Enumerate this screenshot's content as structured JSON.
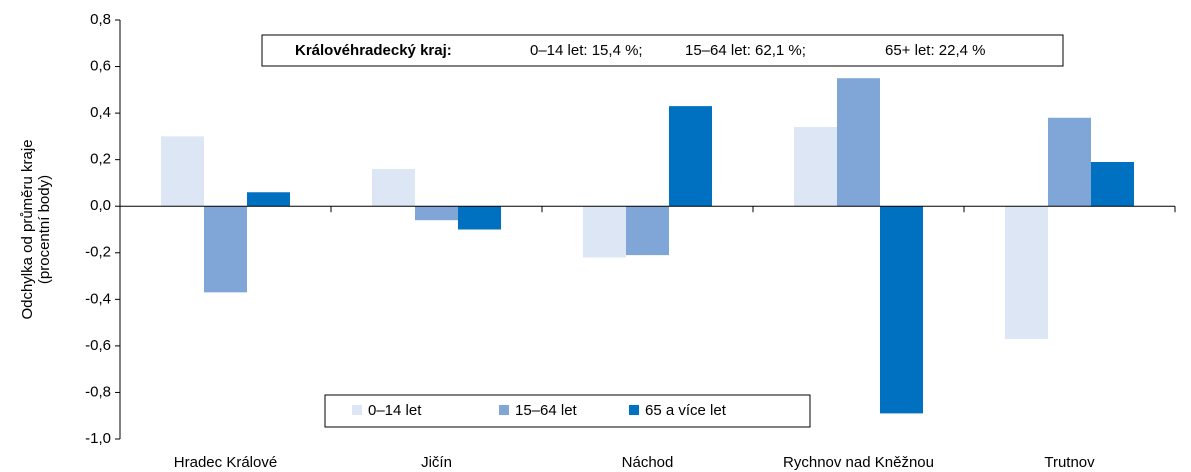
{
  "chart_data": {
    "type": "bar",
    "y_label": [
      "Odchylka od průměru kraje",
      "(procentní body)"
    ],
    "annotation": {
      "title": "Královéhradecký kraj:",
      "items": [
        "0–14 let: 15,4 %;",
        "15–64 let: 62,1 %;",
        "65+ let: 22,4 %"
      ]
    },
    "categories": [
      "Hradec Králové",
      "Jičín",
      "Náchod",
      "Rychnov nad Kněžnou",
      "Trutnov"
    ],
    "series": [
      {
        "name": "0–14 let",
        "color": "#dce6f4",
        "values": [
          0.3,
          0.16,
          -0.22,
          0.34,
          -0.57
        ]
      },
      {
        "name": "15–64 let",
        "color": "#7fa6d6",
        "values": [
          -0.37,
          -0.06,
          -0.21,
          0.55,
          0.38
        ]
      },
      {
        "name": "65 a více let",
        "color": "#0070c0",
        "values": [
          0.06,
          -0.1,
          0.43,
          -0.89,
          0.19
        ]
      }
    ],
    "ylim": [
      -1.0,
      0.8
    ],
    "yticks": [
      {
        "value": -1.0,
        "label": "-1,0"
      },
      {
        "value": -0.8,
        "label": "-0,8"
      },
      {
        "value": -0.6,
        "label": "-0,6"
      },
      {
        "value": -0.4,
        "label": "-0,4"
      },
      {
        "value": -0.2,
        "label": "-0,2"
      },
      {
        "value": 0,
        "label": "0,0"
      },
      {
        "value": 0.2,
        "label": "0,2"
      },
      {
        "value": 0.4,
        "label": "0,4"
      },
      {
        "value": 0.6,
        "label": "0,6"
      },
      {
        "value": 0.8,
        "label": "0,8"
      }
    ],
    "grid": false,
    "legend": "bottom"
  }
}
